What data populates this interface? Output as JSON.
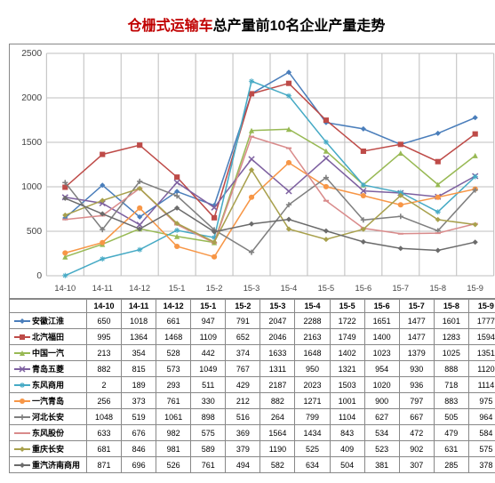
{
  "title_red": "仓栅式运输车",
  "title_rest": "总产量前10名企业产量走势",
  "chart": {
    "ylim": [
      0,
      2500
    ],
    "ytick_step": 500,
    "categories": [
      "14-10",
      "14-11",
      "14-12",
      "15-1",
      "15-2",
      "15-3",
      "15-4",
      "15-5",
      "15-6",
      "15-7",
      "15-8",
      "15-9"
    ],
    "background": "#ffffff",
    "grid_color": "#bfbfbf",
    "axis_font": 10,
    "series": [
      {
        "name": "安徽江淮",
        "color": "#4a7ebb",
        "marker": "diamond",
        "values": [
          650,
          1018,
          661,
          947,
          791,
          2047,
          2288,
          1722,
          1651,
          1477,
          1601,
          1777
        ]
      },
      {
        "name": "北汽福田",
        "color": "#be4b48",
        "marker": "square",
        "values": [
          995,
          1364,
          1468,
          1109,
          652,
          2046,
          2163,
          1749,
          1400,
          1477,
          1283,
          1594
        ]
      },
      {
        "name": "中国一汽",
        "color": "#98b954",
        "marker": "triangle",
        "values": [
          213,
          354,
          528,
          442,
          374,
          1633,
          1648,
          1402,
          1023,
          1379,
          1025,
          1351
        ]
      },
      {
        "name": "青岛五菱",
        "color": "#7d60a0",
        "marker": "x",
        "values": [
          882,
          815,
          573,
          1049,
          767,
          1311,
          950,
          1321,
          954,
          930,
          888,
          1120
        ]
      },
      {
        "name": "东风商用",
        "color": "#46aac5",
        "marker": "star",
        "values": [
          2,
          189,
          293,
          511,
          429,
          2187,
          2023,
          1503,
          1020,
          936,
          718,
          1114
        ]
      },
      {
        "name": "一汽青岛",
        "color": "#f79646",
        "marker": "circle",
        "values": [
          256,
          373,
          761,
          330,
          212,
          882,
          1271,
          1001,
          900,
          797,
          883,
          975
        ]
      },
      {
        "name": "河北长安",
        "color": "#7f7f7f",
        "marker": "plus",
        "values": [
          1048,
          519,
          1061,
          898,
          516,
          264,
          799,
          1104,
          627,
          667,
          505,
          964
        ]
      },
      {
        "name": "东风股份",
        "color": "#d98b8b",
        "marker": "dash",
        "values": [
          633,
          676,
          982,
          575,
          369,
          1564,
          1434,
          843,
          534,
          472,
          479,
          584
        ]
      },
      {
        "name": "重庆长安",
        "color": "#a8a04c",
        "marker": "diamond",
        "values": [
          681,
          846,
          981,
          589,
          379,
          1190,
          525,
          409,
          523,
          902,
          631,
          575
        ]
      },
      {
        "name": "重汽济南商用",
        "color": "#6b6b6b",
        "marker": "diamond",
        "values": [
          871,
          696,
          526,
          761,
          494,
          582,
          634,
          504,
          381,
          307,
          285,
          378
        ]
      }
    ]
  }
}
